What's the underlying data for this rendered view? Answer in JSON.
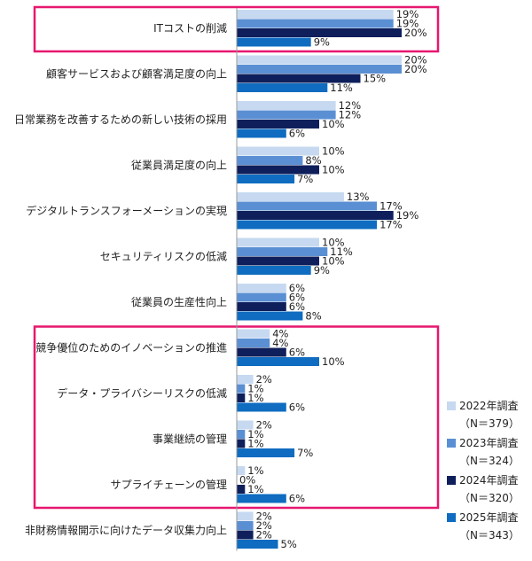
{
  "chart_data": {
    "type": "bar",
    "orientation": "horizontal",
    "categories": [
      "ITコストの削減",
      "顧客サービスおよび顧客満足度の向上",
      "日常業務を改善するための新しい技術の採用",
      "従業員満足度の向上",
      "デジタルトランスフォーメーションの実現",
      "セキュリティリスクの低減",
      "従業員の生産性向上",
      "競争優位のためのイノベーションの推進",
      "データ・プライバシーリスクの低減",
      "事業継続の管理",
      "サプライチェーンの管理",
      "非財務情報開示に向けたデータ収集力向上"
    ],
    "series": [
      {
        "name": "2022年調査",
        "n": "（N＝379）",
        "color": "#c6d9f0",
        "values": [
          19,
          20,
          12,
          10,
          13,
          10,
          6,
          4,
          2,
          2,
          1,
          2
        ]
      },
      {
        "name": "2023年調査",
        "n": "（N＝324）",
        "color": "#5b8fd3",
        "values": [
          19,
          20,
          12,
          8,
          17,
          11,
          6,
          4,
          1,
          1,
          0,
          2
        ]
      },
      {
        "name": "2024年調査",
        "n": "（N＝320）",
        "color": "#0e1f5b",
        "values": [
          20,
          15,
          10,
          10,
          19,
          10,
          6,
          6,
          1,
          1,
          1,
          2
        ]
      },
      {
        "name": "2025年調査",
        "n": "（N＝343）",
        "color": "#0f6cc0",
        "values": [
          9,
          11,
          6,
          7,
          17,
          9,
          8,
          10,
          6,
          7,
          6,
          5
        ]
      }
    ],
    "value_suffix": "%",
    "highlight_groups": [
      [
        0,
        0
      ],
      [
        7,
        10
      ]
    ],
    "highlight_color": "#e6176f",
    "legend_position": "bottom-right",
    "xlim": [
      0,
      20
    ],
    "grid": false,
    "title": "",
    "xlabel": "",
    "ylabel": ""
  }
}
